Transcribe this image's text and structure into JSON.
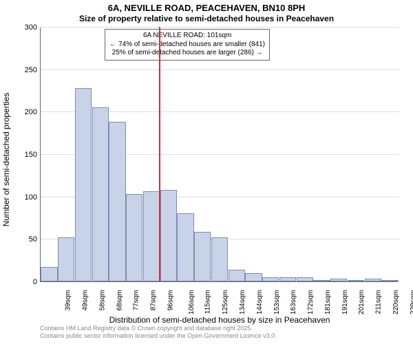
{
  "title_main": "6A, NEVILLE ROAD, PEACEHAVEN, BN10 8PH",
  "title_sub": "Size of property relative to semi-detached houses in Peacehaven",
  "ylabel": "Number of semi-detached properties",
  "xlabel": "Distribution of semi-detached houses by size in Peacehaven",
  "chart": {
    "type": "histogram",
    "ymax": 300,
    "ytick_step": 50,
    "bar_fill": "#c8d3e8",
    "bar_border": "#7a8db5",
    "grid_color": "#c0c0c0",
    "vline_color": "#d43030",
    "vline_at_category_index": 7,
    "categories": [
      "39sqm",
      "49sqm",
      "58sqm",
      "68sqm",
      "77sqm",
      "87sqm",
      "96sqm",
      "106sqm",
      "115sqm",
      "125sqm",
      "134sqm",
      "144sqm",
      "153sqm",
      "163sqm",
      "172sqm",
      "181sqm",
      "191sqm",
      "201sqm",
      "211sqm",
      "220sqm",
      "229sqm"
    ],
    "values": [
      17,
      52,
      228,
      205,
      188,
      103,
      106,
      108,
      80,
      58,
      52,
      14,
      10,
      5,
      5,
      5,
      2,
      3,
      2,
      3,
      2
    ]
  },
  "annotation": {
    "line1": "6A NEVILLE ROAD: 101sqm",
    "line2": "← 74% of semi-detached houses are smaller (841)",
    "line3": "25% of semi-detached houses are larger (286) →"
  },
  "credit": {
    "line1": "Contains HM Land Registry data © Crown copyright and database right 2025.",
    "line2": "Contains public sector information licensed under the Open Government Licence v3.0."
  }
}
